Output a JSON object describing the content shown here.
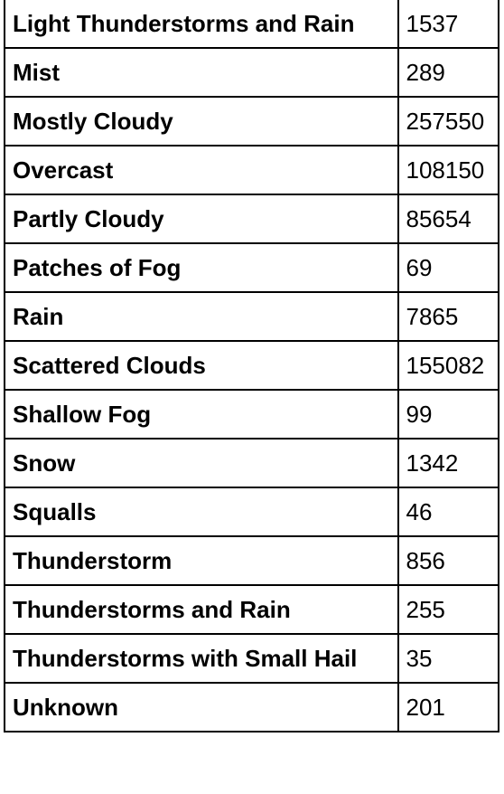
{
  "table": {
    "rows": [
      {
        "condition": "Light Thunderstorms and Rain",
        "count": "1537"
      },
      {
        "condition": "Mist",
        "count": "289"
      },
      {
        "condition": "Mostly Cloudy",
        "count": "257550"
      },
      {
        "condition": "Overcast",
        "count": "108150"
      },
      {
        "condition": "Partly Cloudy",
        "count": "85654"
      },
      {
        "condition": "Patches of Fog",
        "count": "69"
      },
      {
        "condition": "Rain",
        "count": "7865"
      },
      {
        "condition": "Scattered Clouds",
        "count": "155082"
      },
      {
        "condition": "Shallow Fog",
        "count": "99"
      },
      {
        "condition": "Snow",
        "count": "1342"
      },
      {
        "condition": "Squalls",
        "count": "46"
      },
      {
        "condition": "Thunderstorm",
        "count": "856"
      },
      {
        "condition": "Thunderstorms and Rain",
        "count": "255"
      },
      {
        "condition": "Thunderstorms with Small Hail",
        "count": "35"
      },
      {
        "condition": "Unknown",
        "count": "201"
      }
    ]
  }
}
